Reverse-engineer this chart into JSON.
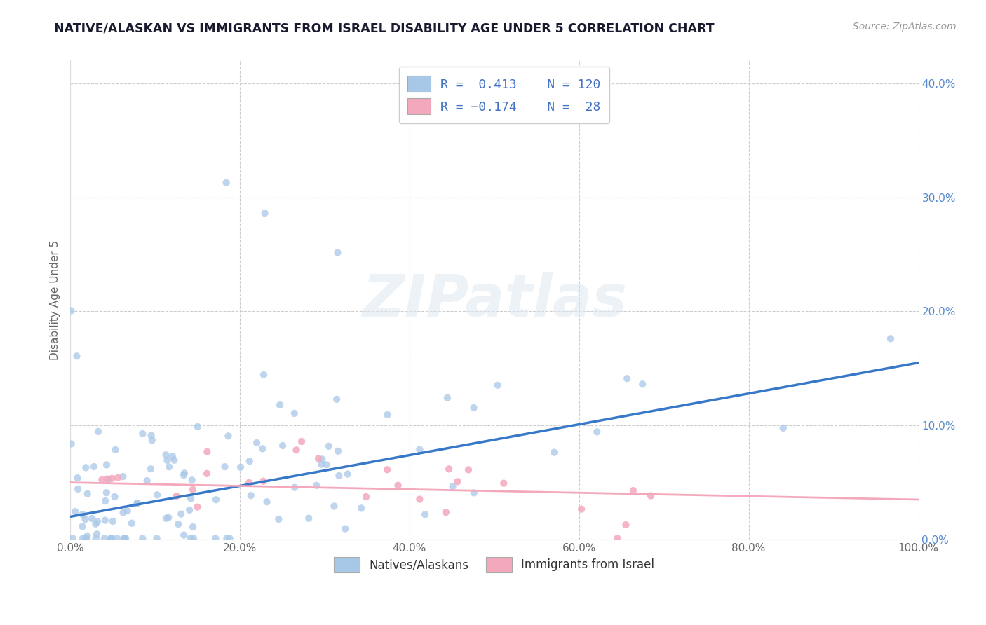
{
  "title": "NATIVE/ALASKAN VS IMMIGRANTS FROM ISRAEL DISABILITY AGE UNDER 5 CORRELATION CHART",
  "source": "Source: ZipAtlas.com",
  "ylabel": "Disability Age Under 5",
  "xlim": [
    0.0,
    1.0
  ],
  "ylim": [
    0.0,
    0.42
  ],
  "xticks": [
    0.0,
    0.2,
    0.4,
    0.6,
    0.8,
    1.0
  ],
  "yticks": [
    0.0,
    0.1,
    0.2,
    0.3,
    0.4
  ],
  "xticklabels": [
    "0.0%",
    "20.0%",
    "40.0%",
    "60.0%",
    "80.0%",
    "100.0%"
  ],
  "yticklabels": [
    "0.0%",
    "10.0%",
    "20.0%",
    "30.0%",
    "40.0%"
  ],
  "background_color": "#ffffff",
  "grid_color": "#c8c8c8",
  "watermark": "ZIPatlas",
  "legend1_label": "Natives/Alaskans",
  "legend2_label": "Immigrants from Israel",
  "scatter_color1": "#a8c8e8",
  "scatter_color2": "#f4a8bc",
  "line_color1": "#3878c8",
  "line_color2": "#f4a8bc",
  "title_color": "#1a1a2e",
  "title_fontsize": 12.5,
  "R1": 0.413,
  "R2": -0.174,
  "N1": 120,
  "N2": 28,
  "seed": 99,
  "tick_color": "#5588cc",
  "legend_box_color": "#4472c4"
}
